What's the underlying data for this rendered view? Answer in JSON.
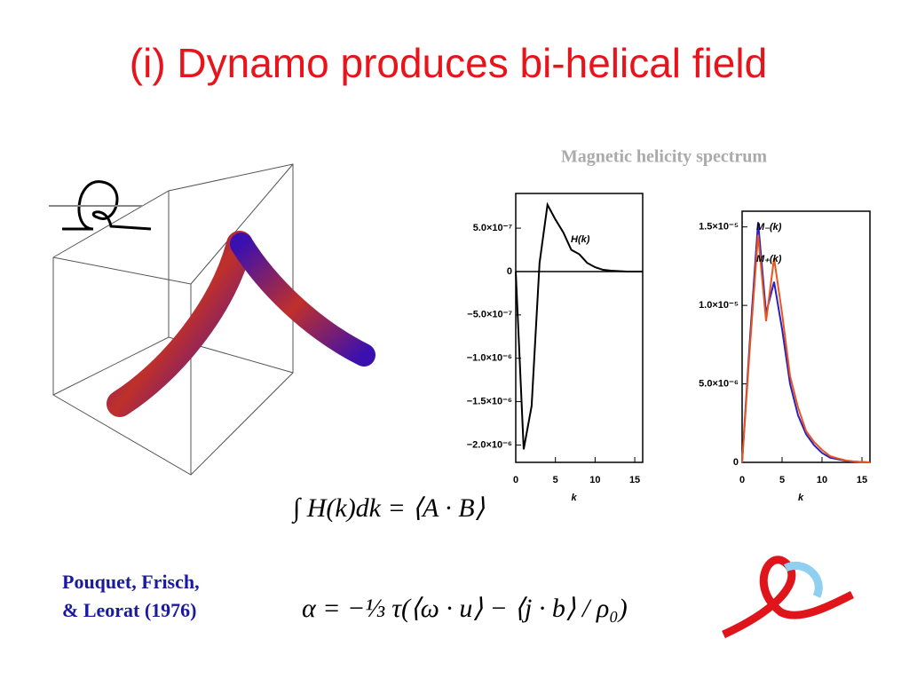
{
  "title": "(i) Dynamo produces bi-helical field",
  "heading": "Magnetic helicity spectrum",
  "chart_data": [
    {
      "type": "line",
      "x_label": "k",
      "x": [
        0,
        1,
        2,
        3,
        4,
        5,
        6,
        7,
        8,
        9,
        10,
        11,
        12,
        13,
        14,
        15,
        16
      ],
      "series": [
        {
          "name": "H(k)",
          "color": "#000000",
          "values": [
            0,
            -2.05e-06,
            -1.55e-06,
            1e-07,
            7.7e-07,
            6e-07,
            4.5e-07,
            2.5e-07,
            2e-07,
            1e-07,
            5e-08,
            2e-08,
            1e-08,
            5e-09,
            0,
            0,
            0
          ]
        }
      ],
      "xlim": [
        0,
        16
      ],
      "xticks": [
        0,
        5,
        10,
        15
      ],
      "ylim": [
        -2.2e-06,
        9e-07
      ],
      "yticks": [
        {
          "value": 5e-07,
          "label": "5.0×10⁻⁷"
        },
        0,
        {
          "value": -5e-07,
          "label": "−5.0×10⁻⁷"
        },
        {
          "value": -1e-06,
          "label": "−1.0×10⁻⁶"
        },
        {
          "value": -1.5e-06,
          "label": "−1.5×10⁻⁶"
        },
        {
          "value": -2e-06,
          "label": "−2.0×10⁻⁶"
        }
      ]
    },
    {
      "type": "line",
      "x_label": "k",
      "x": [
        0,
        1,
        2,
        3,
        4,
        5,
        6,
        7,
        8,
        9,
        10,
        11,
        12,
        13,
        14,
        15,
        16
      ],
      "series": [
        {
          "name": "M₋(k)",
          "color": "#2a1fc0",
          "values": [
            0,
            8e-06,
            1.53e-05,
            9.5e-06,
            1.15e-05,
            8.5e-06,
            5e-06,
            3e-06,
            1.8e-06,
            1.1e-06,
            6e-07,
            3e-07,
            2e-07,
            1e-07,
            5e-08,
            2e-08,
            0
          ]
        },
        {
          "name": "M₊(k)",
          "color": "#e8551e",
          "values": [
            0,
            7.5e-06,
            1.45e-05,
            9e-06,
            1.3e-05,
            9.5e-06,
            5.5e-06,
            3.5e-06,
            2e-06,
            1.3e-06,
            8e-07,
            4e-07,
            2.5e-07,
            1.2e-07,
            6e-08,
            2e-08,
            0
          ]
        }
      ],
      "xlim": [
        0,
        16
      ],
      "xticks": [
        0,
        5,
        10,
        15
      ],
      "ylim": [
        0,
        1.6e-05
      ],
      "yticks": [
        0,
        {
          "value": 5e-06,
          "label": "5.0×10⁻⁶"
        },
        {
          "value": 1e-05,
          "label": "1.0×10⁻⁵"
        },
        {
          "value": 1.5e-05,
          "label": "1.5×10⁻⁵"
        }
      ]
    }
  ],
  "formulas": [
    "∫ H(k)dk = ⟨A · B⟩",
    "α = −⅓ τ(⟨ω · u⟩ − ⟨j · b⟩ / ρ₀)"
  ],
  "citation": [
    "Pouquet, Frisch,",
    "& Leorat (1976)"
  ]
}
